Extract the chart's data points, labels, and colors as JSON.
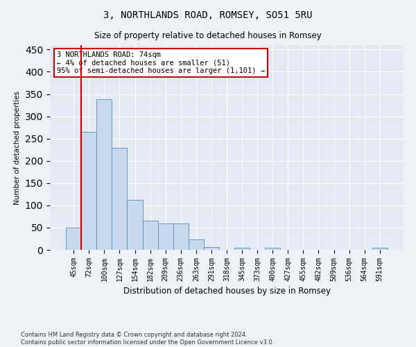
{
  "title": "3, NORTHLANDS ROAD, ROMSEY, SO51 5RU",
  "subtitle": "Size of property relative to detached houses in Romsey",
  "xlabel": "Distribution of detached houses by size in Romsey",
  "ylabel": "Number of detached properties",
  "categories": [
    "45sqm",
    "72sqm",
    "100sqm",
    "127sqm",
    "154sqm",
    "182sqm",
    "209sqm",
    "236sqm",
    "263sqm",
    "291sqm",
    "318sqm",
    "345sqm",
    "373sqm",
    "400sqm",
    "427sqm",
    "455sqm",
    "482sqm",
    "509sqm",
    "536sqm",
    "564sqm",
    "591sqm"
  ],
  "values": [
    50,
    265,
    338,
    230,
    112,
    65,
    60,
    60,
    23,
    6,
    0,
    4,
    0,
    4,
    0,
    0,
    0,
    0,
    0,
    0,
    4
  ],
  "bar_color": "#c9d9ed",
  "bar_edge_color": "#5b8ab5",
  "highlight_line_color": "#cc0000",
  "annotation_line1": "3 NORTHLANDS ROAD: 74sqm",
  "annotation_line2": "← 4% of detached houses are smaller (51)",
  "annotation_line3": "95% of semi-detached houses are larger (1,101) →",
  "annotation_box_color": "#ffffff",
  "annotation_box_edge": "#cc0000",
  "ylim": [
    0,
    460
  ],
  "yticks": [
    0,
    50,
    100,
    150,
    200,
    250,
    300,
    350,
    400,
    450
  ],
  "footer_line1": "Contains HM Land Registry data © Crown copyright and database right 2024.",
  "footer_line2": "Contains public sector information licensed under the Open Government Licence v3.0.",
  "bg_color": "#eef2f8",
  "plot_bg_color": "#e4eaf4"
}
